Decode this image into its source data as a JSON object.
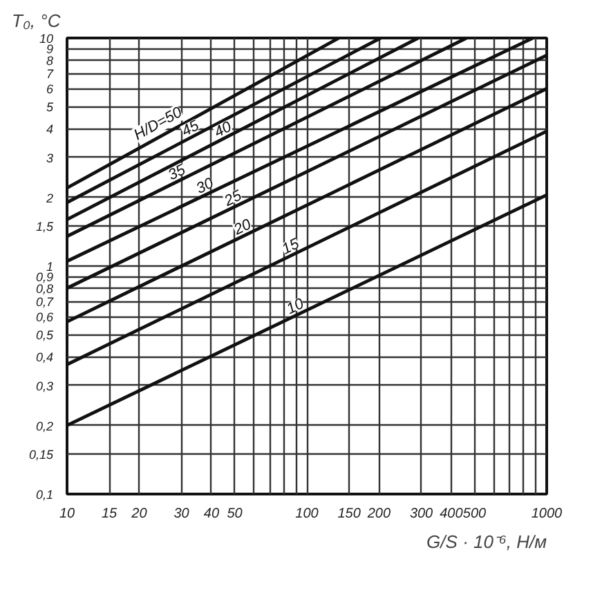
{
  "chart_data": {
    "type": "line",
    "ylabel": "T₀, °C",
    "xlabel": "G/S · 10⁻⁶, Н/м",
    "log": "xy",
    "grid": true,
    "line_style": "solid",
    "marker": "none",
    "xlim": [
      10,
      1000
    ],
    "ylim": [
      0.1,
      10
    ],
    "xticks": [
      10,
      15,
      20,
      30,
      40,
      50,
      {
        "value": 60,
        "label": null
      },
      {
        "value": 70,
        "label": null
      },
      {
        "value": 80,
        "label": null
      },
      {
        "value": 90,
        "label": null
      },
      100,
      150,
      200,
      300,
      400,
      500,
      {
        "value": 600,
        "label": null
      },
      {
        "value": 700,
        "label": null
      },
      {
        "value": 800,
        "label": null
      },
      {
        "value": 900,
        "label": null
      },
      1000
    ],
    "yticks": [
      {
        "value": 0.1,
        "label": "0,1"
      },
      {
        "value": 0.15,
        "label": "0,15"
      },
      {
        "value": 0.2,
        "label": "0,2"
      },
      {
        "value": 0.3,
        "label": "0,3"
      },
      {
        "value": 0.4,
        "label": "0,4"
      },
      {
        "value": 0.5,
        "label": "0,5"
      },
      {
        "value": 0.6,
        "label": "0,6"
      },
      {
        "value": 0.7,
        "label": "0,7"
      },
      {
        "value": 0.8,
        "label": "0,8"
      },
      {
        "value": 0.9,
        "label": "0,9"
      },
      1,
      {
        "value": 1.5,
        "label": "1,5"
      },
      2,
      3,
      4,
      5,
      6,
      7,
      8,
      9,
      10
    ],
    "series": [
      {
        "name": "H/D=50",
        "color": "#111111",
        "x": [
          10,
          136
        ],
        "values": [
          2.2,
          10
        ]
      },
      {
        "name": "45",
        "color": "#111111",
        "x": [
          10,
          203
        ],
        "values": [
          1.9,
          10
        ]
      },
      {
        "name": "40",
        "color": "#111111",
        "x": [
          10,
          291
        ],
        "values": [
          1.6,
          10
        ]
      },
      {
        "name": "35",
        "color": "#111111",
        "x": [
          10,
          463
        ],
        "values": [
          1.35,
          10
        ]
      },
      {
        "name": "30",
        "color": "#111111",
        "x": [
          10,
          875
        ],
        "values": [
          1.05,
          10
        ]
      },
      {
        "name": "25",
        "color": "#111111",
        "x": [
          10,
          1000
        ],
        "values": [
          0.8,
          8.4
        ]
      },
      {
        "name": "20",
        "color": "#111111",
        "x": [
          10,
          1000
        ],
        "values": [
          0.57,
          6
        ]
      },
      {
        "name": "15",
        "color": "#111111",
        "x": [
          10,
          1000
        ],
        "values": [
          0.37,
          3.9
        ]
      },
      {
        "name": "10",
        "color": "#111111",
        "x": [
          10,
          1000
        ],
        "values": [
          0.2,
          2.05
        ]
      }
    ]
  }
}
